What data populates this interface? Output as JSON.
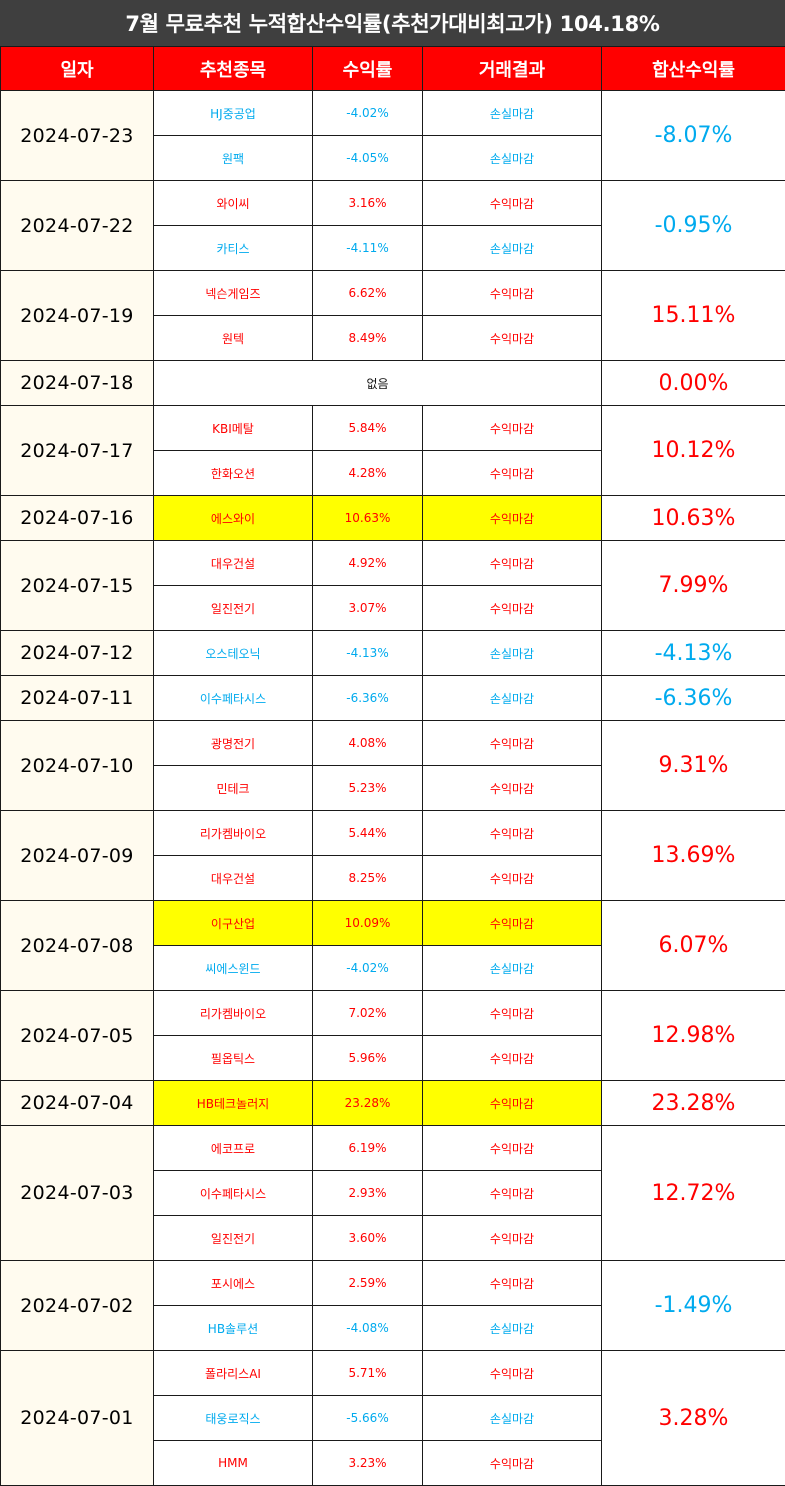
{
  "title": "7월 무료추천 누적합산수익률(추천가대비최고가) 104.18%",
  "headers": [
    "일자",
    "추천종목",
    "수익률",
    "거래결과",
    "합산수익률"
  ],
  "colors": {
    "profit": "#ff0000",
    "loss": "#00aaee",
    "header_bg": "#ff0000",
    "title_bg": "#3f3f3f",
    "highlight": "#ffff00",
    "date_bg": "#fffbef"
  },
  "groups": [
    {
      "date": "2024-07-23",
      "total": "-8.07%",
      "total_type": "loss",
      "rows": [
        {
          "stock": "HJ중공업",
          "pct": "-4.02%",
          "result": "손실마감",
          "type": "loss"
        },
        {
          "stock": "원팩",
          "pct": "-4.05%",
          "result": "손실마감",
          "type": "loss"
        }
      ]
    },
    {
      "date": "2024-07-22",
      "total": "-0.95%",
      "total_type": "loss",
      "rows": [
        {
          "stock": "와이씨",
          "pct": "3.16%",
          "result": "수익마감",
          "type": "profit"
        },
        {
          "stock": "카티스",
          "pct": "-4.11%",
          "result": "손실마감",
          "type": "loss"
        }
      ]
    },
    {
      "date": "2024-07-19",
      "total": "15.11%",
      "total_type": "profit",
      "rows": [
        {
          "stock": "넥슨게임즈",
          "pct": "6.62%",
          "result": "수익마감",
          "type": "profit"
        },
        {
          "stock": "원텍",
          "pct": "8.49%",
          "result": "수익마감",
          "type": "profit"
        }
      ]
    },
    {
      "date": "2024-07-18",
      "total": "0.00%",
      "total_type": "profit",
      "none": "없음",
      "rows": []
    },
    {
      "date": "2024-07-17",
      "total": "10.12%",
      "total_type": "profit",
      "rows": [
        {
          "stock": "KBI메탈",
          "pct": "5.84%",
          "result": "수익마감",
          "type": "profit"
        },
        {
          "stock": "한화오션",
          "pct": "4.28%",
          "result": "수익마감",
          "type": "profit"
        }
      ]
    },
    {
      "date": "2024-07-16",
      "total": "10.63%",
      "total_type": "profit",
      "rows": [
        {
          "stock": "에스와이",
          "pct": "10.63%",
          "result": "수익마감",
          "type": "profit",
          "highlight": true
        }
      ]
    },
    {
      "date": "2024-07-15",
      "total": "7.99%",
      "total_type": "profit",
      "rows": [
        {
          "stock": "대우건설",
          "pct": "4.92%",
          "result": "수익마감",
          "type": "profit"
        },
        {
          "stock": "일진전기",
          "pct": "3.07%",
          "result": "수익마감",
          "type": "profit"
        }
      ]
    },
    {
      "date": "2024-07-12",
      "total": "-4.13%",
      "total_type": "loss",
      "rows": [
        {
          "stock": "오스테오닉",
          "pct": "-4.13%",
          "result": "손실마감",
          "type": "loss"
        }
      ]
    },
    {
      "date": "2024-07-11",
      "total": "-6.36%",
      "total_type": "loss",
      "rows": [
        {
          "stock": "이수페타시스",
          "pct": "-6.36%",
          "result": "손실마감",
          "type": "loss"
        }
      ]
    },
    {
      "date": "2024-07-10",
      "total": "9.31%",
      "total_type": "profit",
      "rows": [
        {
          "stock": "광명전기",
          "pct": "4.08%",
          "result": "수익마감",
          "type": "profit"
        },
        {
          "stock": "민테크",
          "pct": "5.23%",
          "result": "수익마감",
          "type": "profit"
        }
      ]
    },
    {
      "date": "2024-07-09",
      "total": "13.69%",
      "total_type": "profit",
      "rows": [
        {
          "stock": "리가켐바이오",
          "pct": "5.44%",
          "result": "수익마감",
          "type": "profit"
        },
        {
          "stock": "대우건설",
          "pct": "8.25%",
          "result": "수익마감",
          "type": "profit"
        }
      ]
    },
    {
      "date": "2024-07-08",
      "total": "6.07%",
      "total_type": "profit",
      "rows": [
        {
          "stock": "이구산업",
          "pct": "10.09%",
          "result": "수익마감",
          "type": "profit",
          "highlight": true
        },
        {
          "stock": "씨에스윈드",
          "pct": "-4.02%",
          "result": "손실마감",
          "type": "loss"
        }
      ]
    },
    {
      "date": "2024-07-05",
      "total": "12.98%",
      "total_type": "profit",
      "rows": [
        {
          "stock": "리가켐바이오",
          "pct": "7.02%",
          "result": "수익마감",
          "type": "profit"
        },
        {
          "stock": "필옵틱스",
          "pct": "5.96%",
          "result": "수익마감",
          "type": "profit"
        }
      ]
    },
    {
      "date": "2024-07-04",
      "total": "23.28%",
      "total_type": "profit",
      "rows": [
        {
          "stock": "HB테크놀러지",
          "pct": "23.28%",
          "result": "수익마감",
          "type": "profit",
          "highlight": true
        }
      ]
    },
    {
      "date": "2024-07-03",
      "total": "12.72%",
      "total_type": "profit",
      "rows": [
        {
          "stock": "에코프로",
          "pct": "6.19%",
          "result": "수익마감",
          "type": "profit"
        },
        {
          "stock": "이수페타시스",
          "pct": "2.93%",
          "result": "수익마감",
          "type": "profit"
        },
        {
          "stock": "일진전기",
          "pct": "3.60%",
          "result": "수익마감",
          "type": "profit"
        }
      ]
    },
    {
      "date": "2024-07-02",
      "total": "-1.49%",
      "total_type": "loss",
      "rows": [
        {
          "stock": "포시에스",
          "pct": "2.59%",
          "result": "수익마감",
          "type": "profit"
        },
        {
          "stock": "HB솔루션",
          "pct": "-4.08%",
          "result": "손실마감",
          "type": "loss"
        }
      ]
    },
    {
      "date": "2024-07-01",
      "total": "3.28%",
      "total_type": "profit",
      "rows": [
        {
          "stock": "폴라리스AI",
          "pct": "5.71%",
          "result": "수익마감",
          "type": "profit"
        },
        {
          "stock": "태웅로직스",
          "pct": "-5.66%",
          "result": "손실마감",
          "type": "loss"
        },
        {
          "stock": "HMM",
          "pct": "3.23%",
          "result": "수익마감",
          "type": "profit"
        }
      ]
    }
  ]
}
